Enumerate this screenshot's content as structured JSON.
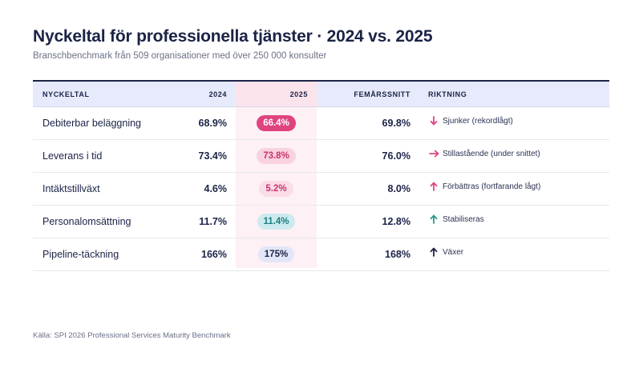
{
  "title": "Nyckeltal för professionella tjänster · 2024 vs. 2025",
  "subtitle": "Branschbenchmark från 509 organisationer med över 250 000 konsulter",
  "table": {
    "headers": {
      "metric": "NYCKELTAL",
      "y2024": "2024",
      "y2025": "2025",
      "avg": "FEMÅRSSNITT",
      "dir": "RIKTNING"
    },
    "rows": [
      {
        "metric": "Debiterbar beläggning",
        "y2024": "68.9%",
        "y2025": "66.4%",
        "avg": "69.8%",
        "dir": "Sjunker (rekordlågt)",
        "arrow_icon": "arrow-down-icon",
        "arrow_color": "#e0447f",
        "pill_bg": "#e0447f",
        "pill_fg": "#ffffff"
      },
      {
        "metric": "Leverans i tid",
        "y2024": "73.4%",
        "y2025": "73.8%",
        "avg": "76.0%",
        "dir": "Stillastående (under snittet)",
        "arrow_icon": "arrow-right-icon",
        "arrow_color": "#e0447f",
        "pill_bg": "#f9d2e0",
        "pill_fg": "#c8336e"
      },
      {
        "metric": "Intäktstillväxt",
        "y2024": "4.6%",
        "y2025": "5.2%",
        "avg": "8.0%",
        "dir": "Förbättras (fortfarande lågt)",
        "arrow_icon": "arrow-up-icon",
        "arrow_color": "#e0447f",
        "pill_bg": "#fbdde8",
        "pill_fg": "#c8336e"
      },
      {
        "metric": "Personalomsättning",
        "y2024": "11.7%",
        "y2025": "11.4%",
        "avg": "12.8%",
        "dir": "Stabiliseras",
        "arrow_icon": "arrow-up-icon",
        "arrow_color": "#2a9a8c",
        "pill_bg": "#cdeaee",
        "pill_fg": "#1f7f80"
      },
      {
        "metric": "Pipeline-täckning",
        "y2024": "166%",
        "y2025": "175%",
        "avg": "168%",
        "dir": "Växer",
        "arrow_icon": "arrow-up-icon",
        "arrow_color": "#1b2346",
        "pill_bg": "#e3e6f8",
        "pill_fg": "#1b2346"
      }
    ]
  },
  "source": "Källa: SPI 2026 Professional Services Maturity Benchmark"
}
